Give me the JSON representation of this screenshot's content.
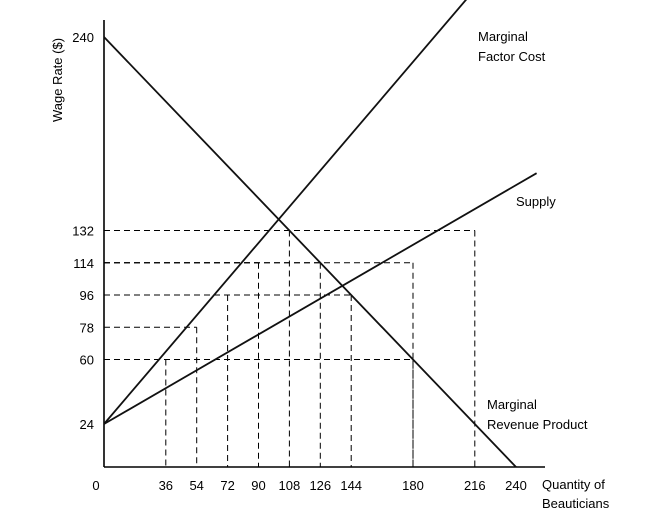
{
  "chart_data": {
    "type": "line",
    "ylabel": "Wage Rate ($)",
    "xlabel_lines": [
      "Quantity of",
      "Beauticians"
    ],
    "origin_label": "0",
    "xlim": [
      0,
      240
    ],
    "ylim": [
      0,
      240
    ],
    "x_ticks": [
      {
        "value": 36,
        "label": "36"
      },
      {
        "value": 54,
        "label": "54"
      },
      {
        "value": 72,
        "label": "72"
      },
      {
        "value": 90,
        "label": "90"
      },
      {
        "value": 108,
        "label": "108"
      },
      {
        "value": 126,
        "label": "126"
      },
      {
        "value": 144,
        "label": "144"
      },
      {
        "value": 180,
        "label": "180"
      },
      {
        "value": 216,
        "label": "216"
      },
      {
        "value": 240,
        "label": "240"
      }
    ],
    "y_ticks": [
      {
        "value": 24,
        "label": "24"
      },
      {
        "value": 60,
        "label": "60"
      },
      {
        "value": 78,
        "label": "78"
      },
      {
        "value": 96,
        "label": "96"
      },
      {
        "value": 114,
        "label": "114"
      },
      {
        "value": 132,
        "label": "132"
      },
      {
        "value": 240,
        "label": "240"
      }
    ],
    "series": [
      {
        "key": "mfc",
        "name_lines": [
          "Marginal",
          "Factor Cost"
        ],
        "points": [
          [
            0,
            24
          ],
          [
            228,
            280
          ]
        ]
      },
      {
        "key": "supply",
        "name_lines": [
          "Supply"
        ],
        "points": [
          [
            0,
            24
          ],
          [
            252,
            164
          ]
        ]
      },
      {
        "key": "mrp",
        "name_lines": [
          "Marginal",
          "Revenue Product"
        ],
        "points": [
          [
            0,
            240
          ],
          [
            240,
            0
          ]
        ]
      }
    ],
    "guides": [
      {
        "x": 36,
        "y": 60
      },
      {
        "x": 54,
        "y": 78
      },
      {
        "x": 72,
        "y": 96
      },
      {
        "x": 90,
        "y": 114
      },
      {
        "x": 108,
        "y": 132
      },
      {
        "x": 126,
        "y": 114
      },
      {
        "x": 144,
        "y": 96
      },
      {
        "x": 180,
        "y": 60
      },
      {
        "x": 180,
        "y": 114
      },
      {
        "x": 216,
        "y": 132
      }
    ]
  }
}
